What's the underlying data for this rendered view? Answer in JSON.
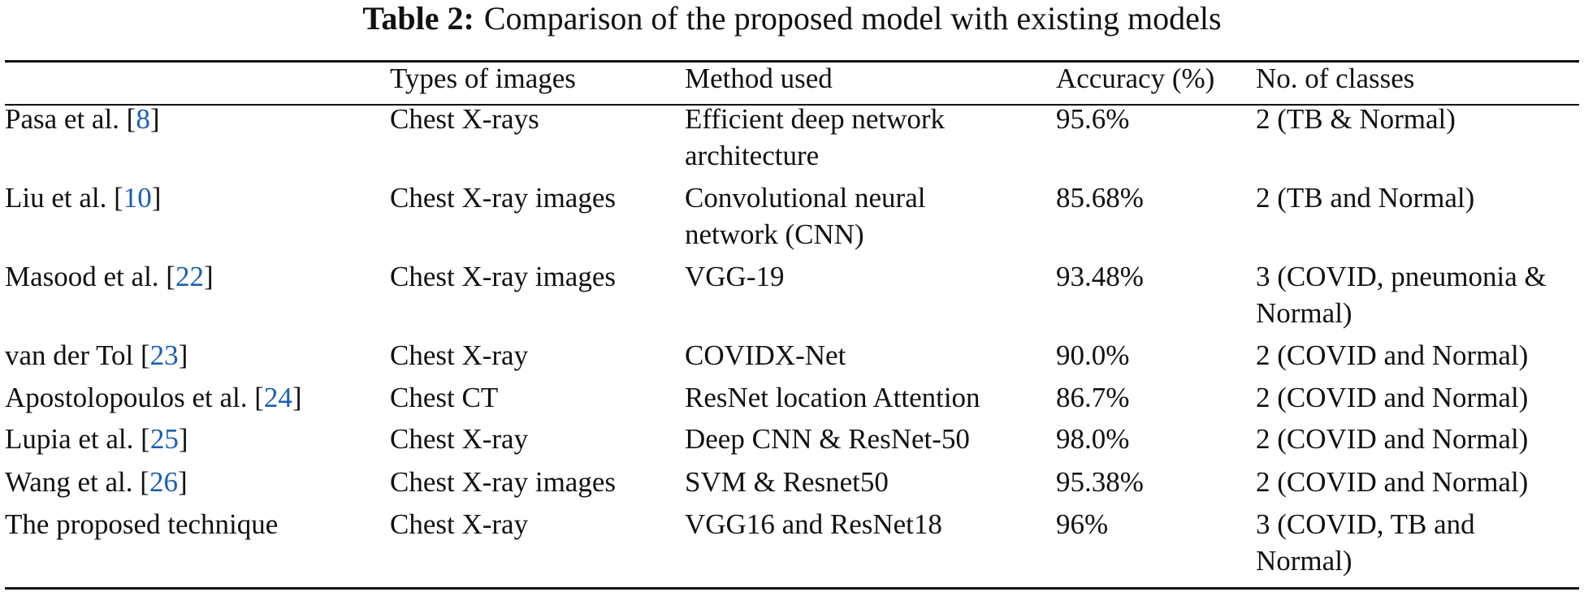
{
  "title": {
    "label": "Table 2:",
    "text": "Comparison of the proposed model with existing models"
  },
  "table": {
    "header": [
      "Types of images",
      "Method used",
      "Accuracy (%)",
      "No. of classes"
    ],
    "rows": [
      [
        {
          "pre": "Pasa et al. [",
          "ref": "8",
          "post": "]"
        },
        [
          "Chest X-rays"
        ],
        [
          "Efficient deep network",
          "architecture"
        ],
        [
          "95.6%"
        ],
        [
          "2 (TB & Normal)"
        ]
      ],
      [
        {
          "pre": "Liu et al. [",
          "ref": "10",
          "post": "]"
        },
        [
          "Chest X-ray images"
        ],
        [
          "Convolutional neural",
          "network (CNN)"
        ],
        [
          "85.68%"
        ],
        [
          "2 (TB and Normal)"
        ]
      ],
      [
        {
          "pre": "Masood et al. [",
          "ref": "22",
          "post": "]"
        },
        [
          "Chest X-ray images"
        ],
        [
          "VGG-19"
        ],
        [
          "93.48%"
        ],
        [
          "3 (COVID, pneumonia &",
          "Normal)"
        ]
      ],
      [
        {
          "pre": "van der Tol [",
          "ref": "23",
          "post": "]"
        },
        [
          "Chest X-ray"
        ],
        [
          "COVIDX-Net"
        ],
        [
          "90.0%"
        ],
        [
          "2 (COVID and Normal)"
        ]
      ],
      [
        {
          "pre": "Apostolopoulos et al. [",
          "ref": "24",
          "post": "]"
        },
        [
          "Chest CT"
        ],
        [
          "ResNet location Attention"
        ],
        [
          "86.7%"
        ],
        [
          "2 (COVID and Normal)"
        ]
      ],
      [
        {
          "pre": "Lupia et al. [",
          "ref": "25",
          "post": "]"
        },
        [
          "Chest X-ray"
        ],
        [
          "Deep CNN & ResNet-50"
        ],
        [
          "98.0%"
        ],
        [
          "2 (COVID and Normal)"
        ]
      ],
      [
        {
          "pre": "Wang et al. [",
          "ref": "26",
          "post": "]"
        },
        [
          "Chest X-ray images"
        ],
        [
          "SVM & Resnet50"
        ],
        [
          "95.38%"
        ],
        [
          "2 (COVID and Normal)"
        ]
      ],
      [
        {
          "pre": "The proposed technique",
          "ref": "",
          "post": ""
        },
        [
          "Chest X-ray"
        ],
        [
          "VGG16 and ResNet18"
        ],
        [
          "96%"
        ],
        [
          "3 (COVID, TB and",
          "Normal)"
        ]
      ]
    ]
  }
}
